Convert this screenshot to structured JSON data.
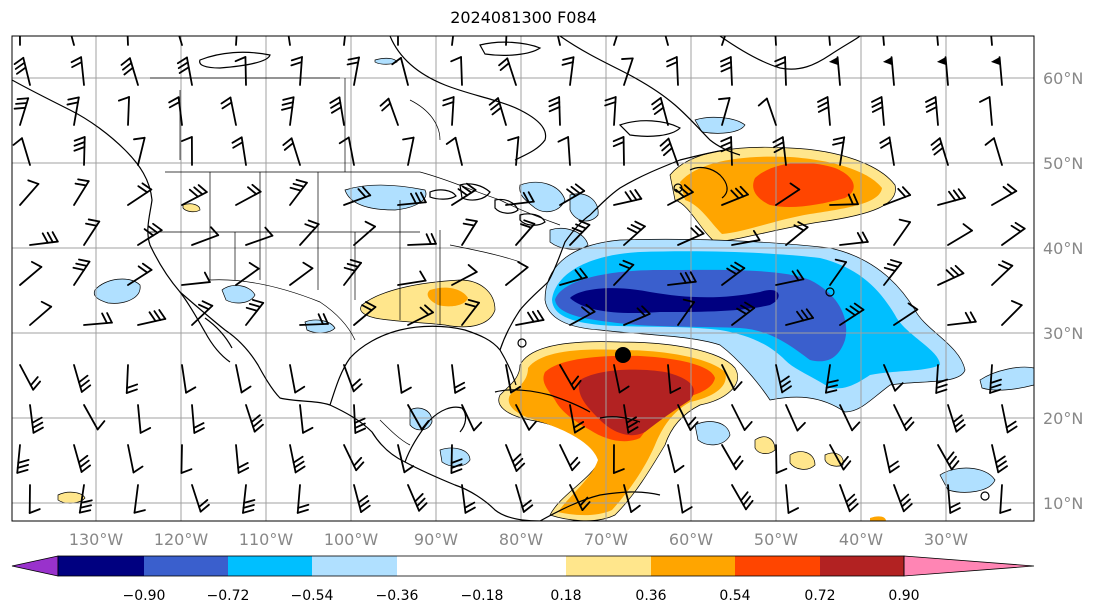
{
  "title": "2024081300 F084",
  "lat_labels": [
    "60°N",
    "50°N",
    "40°N",
    "30°N",
    "20°N",
    "10°N"
  ],
  "lon_labels": [
    "130°W",
    "120°W",
    "110°W",
    "100°W",
    "90°W",
    "80°W",
    "70°W",
    "60°W",
    "50°W",
    "40°W",
    "30°W"
  ],
  "colorbar": {
    "ticks": [
      "−0.90",
      "−0.72",
      "−0.54",
      "−0.36",
      "−0.18",
      "0.18",
      "0.36",
      "0.54",
      "0.72",
      "0.90"
    ],
    "colors": {
      "under": "#9932cc",
      "bins": [
        "#000080",
        "#3a5fcd",
        "#00bfff",
        "#b0e0ff",
        "#ffffff",
        "#ffe68c",
        "#ffa500",
        "#ff4500",
        "#b22222"
      ],
      "over": "#ff85b4"
    }
  }
}
